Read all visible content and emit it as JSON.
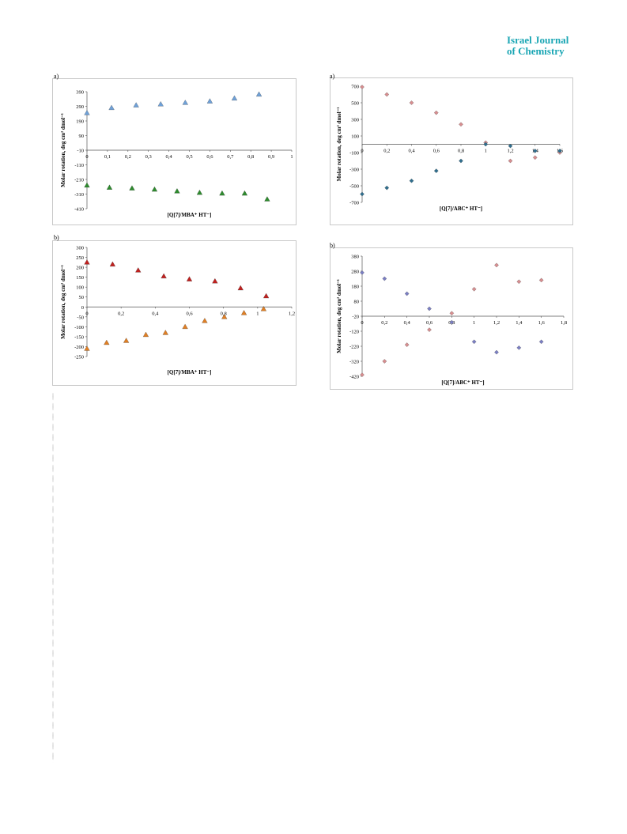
{
  "header": {
    "journal_line1": "Israel Journal",
    "journal_line2": "of Chemistry"
  },
  "chart_data": [
    {
      "id": "left-a",
      "panel_label": "a)",
      "type": "scatter",
      "marker": "triangle",
      "xlabel": "[Q[7]/MBA⁺ HT⁻]",
      "ylabel": "Molar rotation, deg cm² dmol⁻¹",
      "xlim": [
        0,
        1
      ],
      "ylim": [
        -410,
        390
      ],
      "xticks": [
        0,
        0.1,
        0.2,
        0.3,
        0.4,
        0.5,
        0.6,
        0.7,
        0.8,
        0.9,
        1
      ],
      "xtick_labels": [
        "0",
        "0,1",
        "0,2",
        "0,3",
        "0,4",
        "0,5",
        "0,6",
        "0,7",
        "0,8",
        "0,9",
        "1"
      ],
      "yticks": [
        390,
        290,
        190,
        90,
        -10,
        -110,
        -210,
        -310,
        -410
      ],
      "ytick_labels": [
        "390",
        "290",
        "190",
        "90",
        "-10",
        "-110",
        "-210",
        "-310",
        "-410"
      ],
      "x_axis_at": -10,
      "series": [
        {
          "color": "#6fa1d8",
          "x": [
            0,
            0.12,
            0.24,
            0.36,
            0.48,
            0.6,
            0.72,
            0.84
          ],
          "y": [
            245,
            280,
            298,
            305,
            315,
            325,
            345,
            372
          ]
        },
        {
          "color": "#2e8b2e",
          "x": [
            0,
            0.11,
            0.22,
            0.33,
            0.44,
            0.55,
            0.66,
            0.77,
            0.88
          ],
          "y": [
            -250,
            -265,
            -270,
            -278,
            -290,
            -300,
            -305,
            -305,
            -345
          ]
        }
      ]
    },
    {
      "id": "left-b",
      "panel_label": "b)",
      "type": "scatter",
      "marker": "triangle",
      "xlabel": "[Q[7]/MBA⁺ HT⁻]",
      "ylabel": "Molar rotation, deg cm² dmol⁻¹",
      "xlim": [
        0,
        1.2
      ],
      "ylim": [
        -250,
        300
      ],
      "xticks": [
        0,
        0.2,
        0.4,
        0.6,
        0.8,
        1,
        1.2
      ],
      "xtick_labels": [
        "0",
        "0,2",
        "0,4",
        "0,6",
        "0,8",
        "1",
        "1,2"
      ],
      "yticks": [
        300,
        250,
        200,
        150,
        100,
        50,
        0,
        -50,
        -100,
        -150,
        -200,
        -250
      ],
      "ytick_labels": [
        "300",
        "250",
        "200",
        "150",
        "100",
        "50",
        "0",
        "-50",
        "-100",
        "-150",
        "-200",
        "-250"
      ],
      "x_axis_at": 0,
      "series": [
        {
          "color": "#c0211f",
          "x": [
            0,
            0.15,
            0.3,
            0.45,
            0.6,
            0.75,
            0.9,
            1.05
          ],
          "y": [
            225,
            215,
            185,
            155,
            140,
            130,
            95,
            55
          ]
        },
        {
          "color": "#e07f24",
          "x": [
            0,
            0.115,
            0.23,
            0.345,
            0.46,
            0.575,
            0.69,
            0.805,
            0.92,
            1.035
          ],
          "y": [
            -210,
            -180,
            -170,
            -140,
            -130,
            -100,
            -70,
            -50,
            -30,
            -10
          ]
        }
      ]
    },
    {
      "id": "right-a",
      "panel_label": "a)",
      "type": "scatter",
      "marker": "diamond",
      "xlabel": "[Q[7]/ABC⁺ HT⁻]",
      "ylabel": "Molar rotation, deg cm² dmol⁻¹",
      "xlim": [
        0,
        1.6
      ],
      "ylim": [
        -700,
        700
      ],
      "xticks": [
        0,
        0.2,
        0.4,
        0.6,
        0.8,
        1,
        1.2,
        1.4,
        1.6
      ],
      "xtick_labels": [
        "0",
        "0,2",
        "0,4",
        "0,6",
        "0,8",
        "1",
        "1,2",
        "1,4",
        "1,6"
      ],
      "yticks": [
        700,
        500,
        300,
        100,
        -100,
        -300,
        -500,
        -700
      ],
      "ytick_labels": [
        "700",
        "500",
        "300",
        "100",
        "-100",
        "-300",
        "-500",
        "-700"
      ],
      "x_axis_at": 0,
      "series": [
        {
          "color": "#d88e90",
          "x": [
            0,
            0.2,
            0.4,
            0.6,
            0.8,
            1.0,
            1.2,
            1.4,
            1.6
          ],
          "y": [
            690,
            600,
            500,
            380,
            240,
            20,
            -200,
            -160,
            -100
          ]
        },
        {
          "color": "#2f6e8e",
          "x": [
            0,
            0.2,
            0.4,
            0.6,
            0.8,
            1.0,
            1.2,
            1.4,
            1.6
          ],
          "y": [
            -600,
            -525,
            -440,
            -320,
            -200,
            0,
            -20,
            -80,
            -80
          ]
        }
      ]
    },
    {
      "id": "right-b",
      "panel_label": "b)",
      "type": "scatter",
      "marker": "diamond",
      "xlabel": "[Q[7]/ABC⁺ HT⁻]",
      "ylabel": "Molar rotation, deg cm² dmol⁻¹",
      "xlim": [
        0,
        1.8
      ],
      "ylim": [
        -420,
        380
      ],
      "xticks": [
        0,
        0.2,
        0.4,
        0.6,
        0.8,
        1,
        1.2,
        1.4,
        1.6,
        1.8
      ],
      "xtick_labels": [
        "0",
        "0,2",
        "0,4",
        "0,6",
        "0,8",
        "1",
        "1,2",
        "1,4",
        "1,6",
        "1,8"
      ],
      "yticks": [
        380,
        280,
        180,
        80,
        -20,
        -120,
        -220,
        -320,
        -420
      ],
      "ytick_labels": [
        "380",
        "280",
        "180",
        "80",
        "-20",
        "-120",
        "-220",
        "-320",
        "-420"
      ],
      "x_axis_at": -20,
      "series": [
        {
          "color": "#7b7fc4",
          "x": [
            0,
            0.2,
            0.4,
            0.6,
            0.8,
            1.0,
            1.2,
            1.4,
            1.6
          ],
          "y": [
            270,
            230,
            130,
            30,
            -60,
            -190,
            -260,
            -230,
            -190
          ]
        },
        {
          "color": "#d88e90",
          "x": [
            0,
            0.2,
            0.4,
            0.6,
            0.8,
            1.0,
            1.2,
            1.4,
            1.6
          ],
          "y": [
            -410,
            -320,
            -210,
            -110,
            0,
            160,
            320,
            210,
            220
          ]
        }
      ]
    }
  ]
}
